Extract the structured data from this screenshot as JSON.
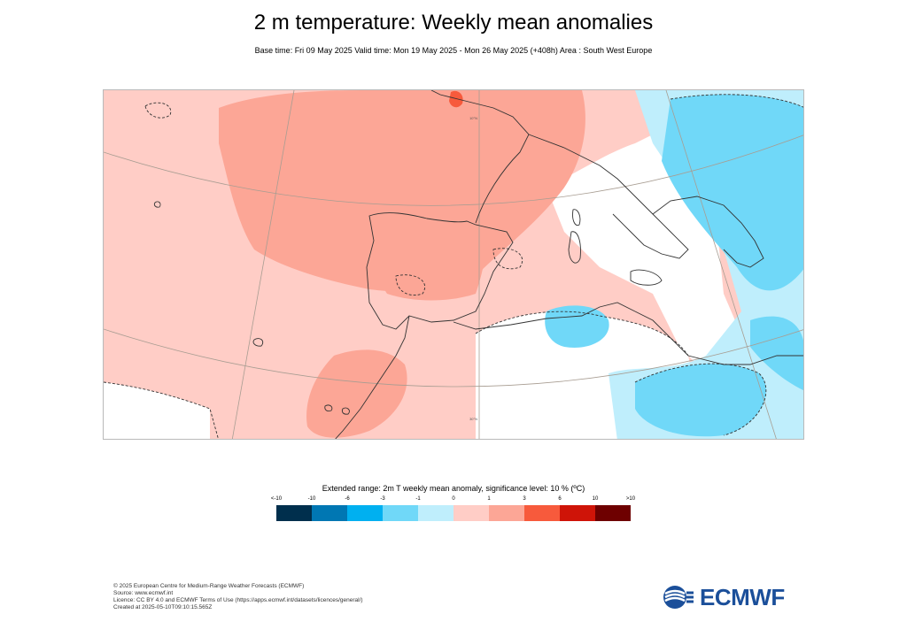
{
  "title": "2 m temperature: Weekly mean anomalies",
  "subtitle": "Base time: Fri 09 May 2025 Valid time: Mon 19 May 2025 - Mon 26 May 2025 (+408h) Area : South West Europe",
  "map": {
    "region": "South West Europe",
    "gridline_labels": [
      "10°N",
      "30°N"
    ],
    "colors": {
      "ocean_default": "#ffffff",
      "land_outline": "#333333",
      "graticule": "#a89d92"
    }
  },
  "legend": {
    "title": "Extended range: 2m T weekly mean anomaly, significance level: 10 % (ºC)",
    "labels": [
      "<-10",
      "-10",
      "-6",
      "-3",
      "-1",
      "0",
      "1",
      "3",
      "6",
      "10",
      ">10"
    ],
    "colors": [
      "#002f4d",
      "#0077b3",
      "#00b0f0",
      "#70d8f8",
      "#bfeefc",
      "#ffcdc6",
      "#fca696",
      "#f75a3c",
      "#cf1408",
      "#6e0000"
    ]
  },
  "footer": [
    "© 2025 European Centre for Medium-Range Weather Forecasts (ECMWF)",
    "Source: www.ecmwf.int",
    "Licence: CC BY 4.0 and ECMWF Terms of Use (https://apps.ecmwf.int/datasets/licences/general/)",
    "Created at 2025-05-10T09:10:15.565Z"
  ],
  "logo": {
    "text": "ECMWF",
    "color": "#1b4f9a"
  }
}
